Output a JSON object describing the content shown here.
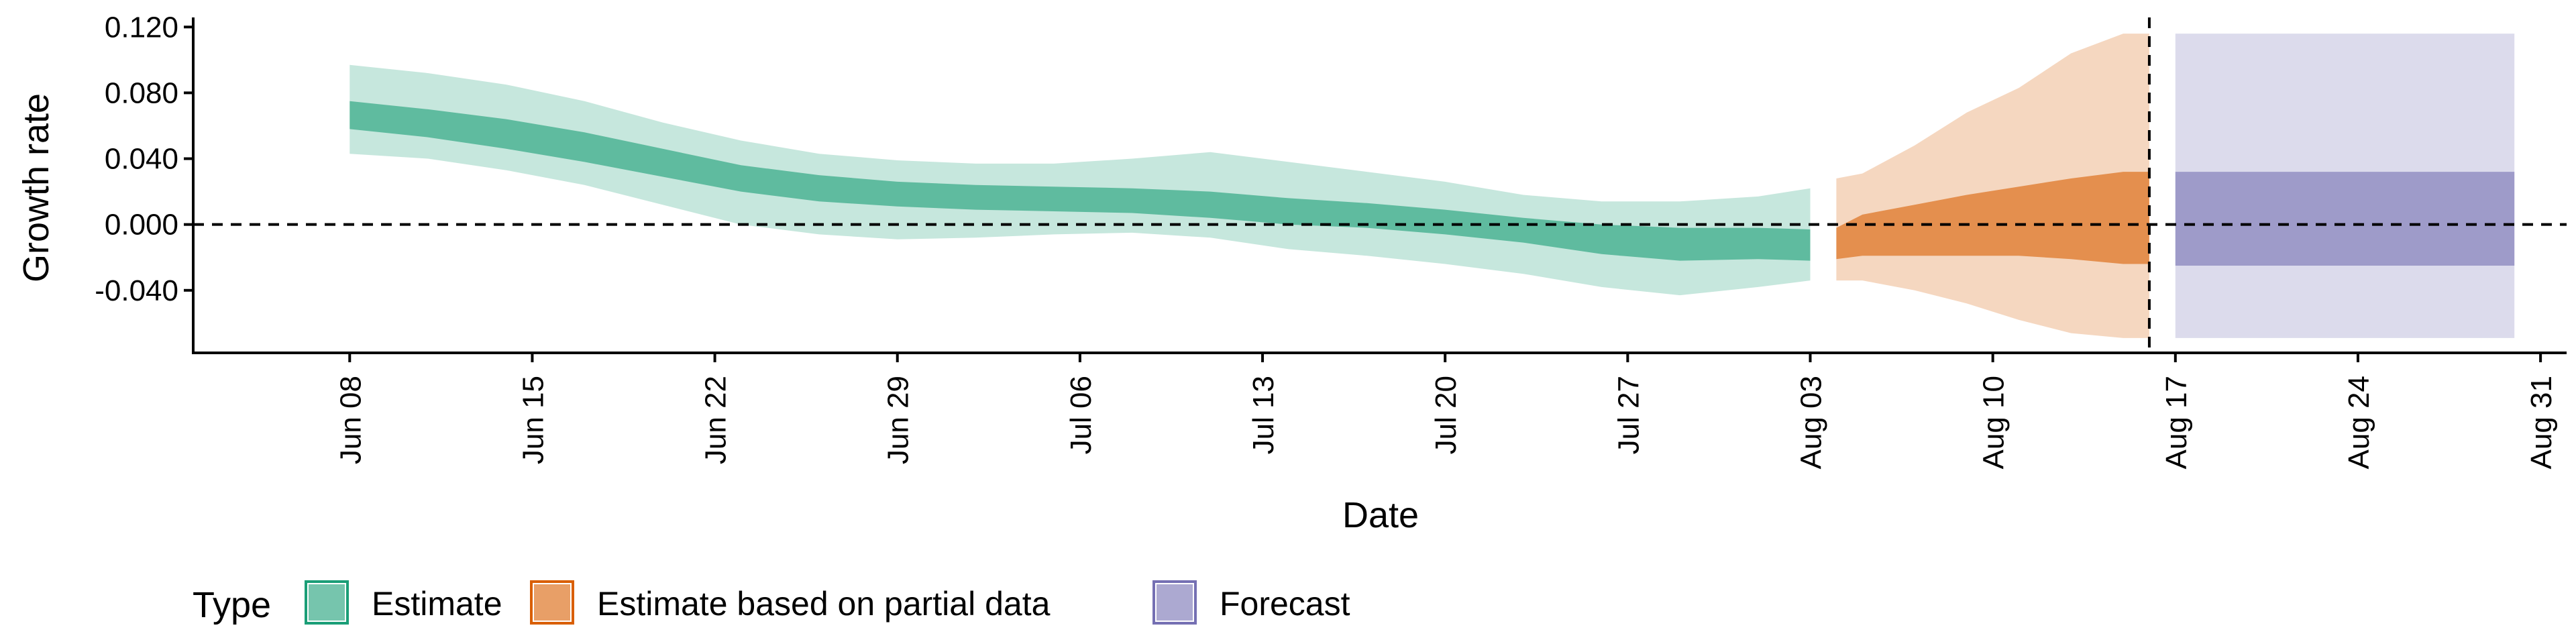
{
  "chart_data": {
    "type": "area",
    "xlabel": "Date",
    "ylabel": "Growth rate",
    "ylim": [
      -0.078,
      0.125
    ],
    "xlim": [
      "2020-06-02",
      "2020-09-01"
    ],
    "y_ticks": [
      "-0.040",
      "0.000",
      "0.040",
      "0.080",
      "0.120"
    ],
    "x_ticks": [
      {
        "date": "2020-06-08",
        "label": "Jun 08"
      },
      {
        "date": "2020-06-15",
        "label": "Jun 15"
      },
      {
        "date": "2020-06-22",
        "label": "Jun 22"
      },
      {
        "date": "2020-06-29",
        "label": "Jun 29"
      },
      {
        "date": "2020-07-06",
        "label": "Jul 06"
      },
      {
        "date": "2020-07-13",
        "label": "Jul 13"
      },
      {
        "date": "2020-07-20",
        "label": "Jul 20"
      },
      {
        "date": "2020-07-27",
        "label": "Jul 27"
      },
      {
        "date": "2020-08-03",
        "label": "Aug 03"
      },
      {
        "date": "2020-08-10",
        "label": "Aug 10"
      },
      {
        "date": "2020-08-17",
        "label": "Aug 17"
      },
      {
        "date": "2020-08-24",
        "label": "Aug 24"
      },
      {
        "date": "2020-08-31",
        "label": "Aug 31"
      }
    ],
    "hline": 0,
    "vline_date": "2020-08-16",
    "legend": {
      "title": "Type",
      "position": "bottom-left",
      "entries": [
        "Estimate",
        "Estimate based on partial data",
        "Forecast"
      ]
    },
    "series": [
      {
        "name": "Estimate",
        "color": "#1b9e77",
        "points": [
          {
            "x": "2020-06-08",
            "lo90": 0.043,
            "lo50": 0.058,
            "hi50": 0.075,
            "hi90": 0.097
          },
          {
            "x": "2020-06-11",
            "lo90": 0.04,
            "lo50": 0.053,
            "hi50": 0.07,
            "hi90": 0.092
          },
          {
            "x": "2020-06-14",
            "lo90": 0.033,
            "lo50": 0.046,
            "hi50": 0.064,
            "hi90": 0.085
          },
          {
            "x": "2020-06-17",
            "lo90": 0.024,
            "lo50": 0.038,
            "hi50": 0.056,
            "hi90": 0.075
          },
          {
            "x": "2020-06-20",
            "lo90": 0.012,
            "lo50": 0.029,
            "hi50": 0.046,
            "hi90": 0.062
          },
          {
            "x": "2020-06-23",
            "lo90": 0.0,
            "lo50": 0.02,
            "hi50": 0.036,
            "hi90": 0.051
          },
          {
            "x": "2020-06-26",
            "lo90": -0.006,
            "lo50": 0.014,
            "hi50": 0.03,
            "hi90": 0.043
          },
          {
            "x": "2020-06-29",
            "lo90": -0.009,
            "lo50": 0.011,
            "hi50": 0.026,
            "hi90": 0.039
          },
          {
            "x": "2020-07-02",
            "lo90": -0.008,
            "lo50": 0.009,
            "hi50": 0.024,
            "hi90": 0.037
          },
          {
            "x": "2020-07-05",
            "lo90": -0.006,
            "lo50": 0.008,
            "hi50": 0.023,
            "hi90": 0.037
          },
          {
            "x": "2020-07-08",
            "lo90": -0.005,
            "lo50": 0.007,
            "hi50": 0.022,
            "hi90": 0.04
          },
          {
            "x": "2020-07-11",
            "lo90": -0.008,
            "lo50": 0.004,
            "hi50": 0.02,
            "hi90": 0.044
          },
          {
            "x": "2020-07-14",
            "lo90": -0.015,
            "lo50": 0.0,
            "hi50": 0.016,
            "hi90": 0.038
          },
          {
            "x": "2020-07-17",
            "lo90": -0.019,
            "lo50": -0.002,
            "hi50": 0.013,
            "hi90": 0.032
          },
          {
            "x": "2020-07-20",
            "lo90": -0.024,
            "lo50": -0.006,
            "hi50": 0.009,
            "hi90": 0.026
          },
          {
            "x": "2020-07-23",
            "lo90": -0.03,
            "lo50": -0.011,
            "hi50": 0.004,
            "hi90": 0.018
          },
          {
            "x": "2020-07-26",
            "lo90": -0.038,
            "lo50": -0.018,
            "hi50": 0.0,
            "hi90": 0.014
          },
          {
            "x": "2020-07-29",
            "lo90": -0.043,
            "lo50": -0.022,
            "hi50": -0.002,
            "hi90": 0.014
          },
          {
            "x": "2020-08-01",
            "lo90": -0.038,
            "lo50": -0.021,
            "hi50": -0.002,
            "hi90": 0.017
          },
          {
            "x": "2020-08-03",
            "lo90": -0.034,
            "lo50": -0.022,
            "hi50": -0.003,
            "hi90": 0.022
          }
        ]
      },
      {
        "name": "Estimate based on partial data",
        "color": "#d95f02",
        "points": [
          {
            "x": "2020-08-04",
            "lo90": -0.034,
            "lo50": -0.021,
            "hi50": -0.002,
            "hi90": 0.028
          },
          {
            "x": "2020-08-05",
            "lo90": -0.034,
            "lo50": -0.019,
            "hi50": 0.006,
            "hi90": 0.031
          },
          {
            "x": "2020-08-07",
            "lo90": -0.04,
            "lo50": -0.019,
            "hi50": 0.012,
            "hi90": 0.048
          },
          {
            "x": "2020-08-09",
            "lo90": -0.048,
            "lo50": -0.019,
            "hi50": 0.018,
            "hi90": 0.068
          },
          {
            "x": "2020-08-11",
            "lo90": -0.058,
            "lo50": -0.019,
            "hi50": 0.023,
            "hi90": 0.083
          },
          {
            "x": "2020-08-13",
            "lo90": -0.066,
            "lo50": -0.021,
            "hi50": 0.028,
            "hi90": 0.104
          },
          {
            "x": "2020-08-15",
            "lo90": -0.069,
            "lo50": -0.024,
            "hi50": 0.032,
            "hi90": 0.116
          },
          {
            "x": "2020-08-16",
            "lo90": -0.069,
            "lo50": -0.024,
            "hi50": 0.032,
            "hi90": 0.116
          }
        ]
      },
      {
        "name": "Forecast",
        "color": "#7570b3",
        "points": [
          {
            "x": "2020-08-17",
            "lo90": -0.069,
            "lo50": -0.025,
            "hi50": 0.032,
            "hi90": 0.116
          },
          {
            "x": "2020-08-30",
            "lo90": -0.069,
            "lo50": -0.025,
            "hi50": 0.032,
            "hi90": 0.116
          }
        ]
      }
    ]
  }
}
